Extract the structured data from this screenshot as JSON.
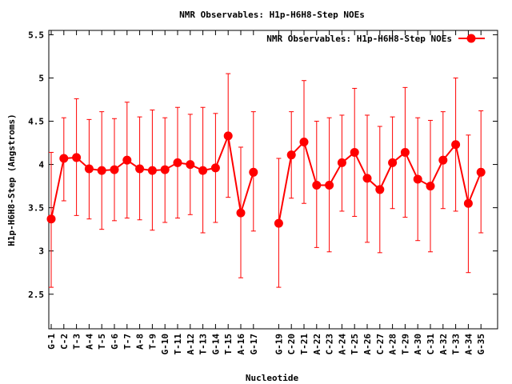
{
  "chart_data": {
    "type": "line",
    "title": "NMR Observables: H1p-H6H8-Step NOEs",
    "xlabel": "Nucleotide",
    "ylabel": "H1p-H6H8-Step (Angstroms)",
    "ylim": [
      2.1,
      5.55
    ],
    "yticks": [
      "2.5",
      "3",
      "3.5",
      "4",
      "4.5",
      "5",
      "5.5"
    ],
    "ytick_values": [
      2.5,
      3,
      3.5,
      4,
      4.5,
      5,
      5.5
    ],
    "grid": false,
    "legend_position": "top-right",
    "series": [
      {
        "name": "NMR Observables: H1p-H6H8-Step NOEs",
        "color": "#ff0000",
        "segments": [
          {
            "categories": [
              "G-1",
              "C-2",
              "T-3",
              "A-4",
              "T-5",
              "G-6",
              "T-7",
              "A-8",
              "T-9",
              "G-10",
              "T-11",
              "A-12",
              "T-13",
              "G-14",
              "T-15",
              "A-16",
              "G-17"
            ],
            "values": [
              3.37,
              4.07,
              4.08,
              3.95,
              3.93,
              3.94,
              4.05,
              3.95,
              3.93,
              3.94,
              4.02,
              4.0,
              3.93,
              3.96,
              4.33,
              3.44,
              3.91
            ],
            "err_low": [
              2.58,
              3.58,
              3.41,
              3.37,
              3.25,
              3.35,
              3.38,
              3.36,
              3.24,
              3.33,
              3.38,
              3.42,
              3.21,
              3.33,
              3.62,
              2.69,
              3.23
            ],
            "err_high": [
              4.14,
              4.54,
              4.76,
              4.52,
              4.61,
              4.53,
              4.72,
              4.55,
              4.63,
              4.54,
              4.66,
              4.58,
              4.66,
              4.59,
              5.05,
              4.2,
              4.61
            ]
          },
          {
            "categories": [
              "G-19",
              "C-20",
              "T-21",
              "A-22",
              "C-23",
              "A-24",
              "T-25",
              "A-26",
              "C-27",
              "A-28",
              "T-29",
              "A-30",
              "C-31",
              "A-32",
              "T-33",
              "A-34",
              "G-35"
            ],
            "values": [
              3.32,
              4.11,
              4.26,
              3.76,
              3.76,
              4.02,
              4.14,
              3.84,
              3.71,
              4.02,
              4.14,
              3.83,
              3.75,
              4.05,
              4.23,
              3.55,
              3.91
            ],
            "err_low": [
              2.58,
              3.61,
              3.55,
              3.04,
              2.99,
              3.46,
              3.4,
              3.1,
              2.98,
              3.49,
              3.39,
              3.12,
              2.99,
              3.49,
              3.46,
              2.75,
              3.21
            ],
            "err_high": [
              4.07,
              4.61,
              4.97,
              4.5,
              4.54,
              4.57,
              4.88,
              4.57,
              4.44,
              4.55,
              4.89,
              4.54,
              4.51,
              4.61,
              5.0,
              4.34,
              4.62
            ]
          }
        ]
      }
    ]
  }
}
